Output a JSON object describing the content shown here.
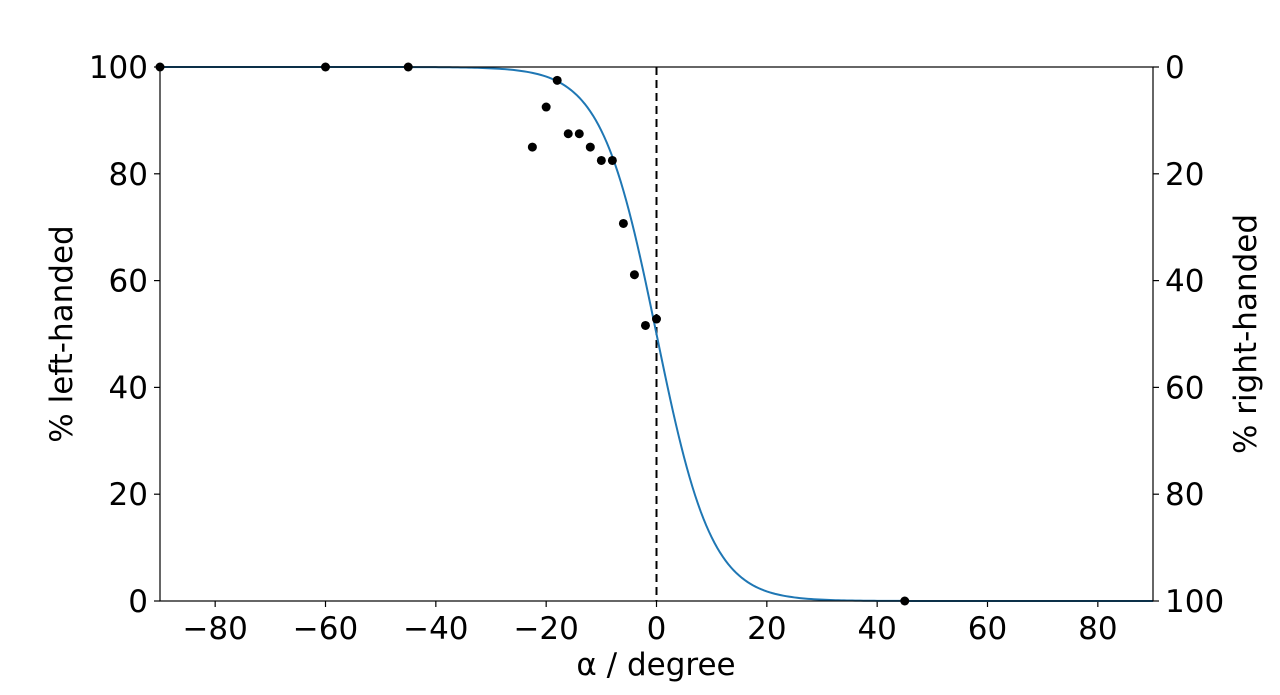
{
  "chart_data": {
    "type": "scatter",
    "xlabel": "α / degree",
    "ylabel": "% left-handed",
    "y2label": "% right-handed",
    "xlim": [
      -90,
      90
    ],
    "ylim": [
      0,
      100
    ],
    "y2lim": [
      100,
      0
    ],
    "x_ticks": [
      -80,
      -60,
      -40,
      -20,
      0,
      20,
      40,
      60,
      80
    ],
    "x_tick_labels": [
      "−80",
      "−60",
      "−40",
      "−20",
      "0",
      "20",
      "40",
      "60",
      "80"
    ],
    "y_ticks": [
      0,
      20,
      40,
      60,
      80,
      100
    ],
    "y_tick_labels": [
      "0",
      "20",
      "40",
      "60",
      "80",
      "100"
    ],
    "y2_ticks": [
      0,
      20,
      40,
      60,
      80,
      100
    ],
    "y2_tick_labels": [
      "0",
      "20",
      "40",
      "60",
      "80",
      "100"
    ],
    "grid": false,
    "legend": false,
    "reference_line": {
      "x": 0,
      "style": "dashed",
      "color": "#000000"
    },
    "series": [
      {
        "type": "scatter",
        "color": "#000000",
        "points": [
          [
            -90,
            100
          ],
          [
            -60,
            100
          ],
          [
            -45,
            100
          ],
          [
            -22.5,
            85
          ],
          [
            -20,
            92.5
          ],
          [
            -18,
            97.5
          ],
          [
            -16,
            87.5
          ],
          [
            -14,
            87.5
          ],
          [
            -12,
            85
          ],
          [
            -10,
            82.5
          ],
          [
            -8,
            82.5
          ],
          [
            -6,
            70.7
          ],
          [
            -4,
            61.1
          ],
          [
            -2,
            51.6
          ],
          [
            0,
            52.8
          ],
          [
            45,
            0
          ]
        ]
      },
      {
        "type": "line",
        "color": "#1f77b4",
        "model": "logistic",
        "midpoint": 0,
        "slope": 0.2
      }
    ]
  }
}
